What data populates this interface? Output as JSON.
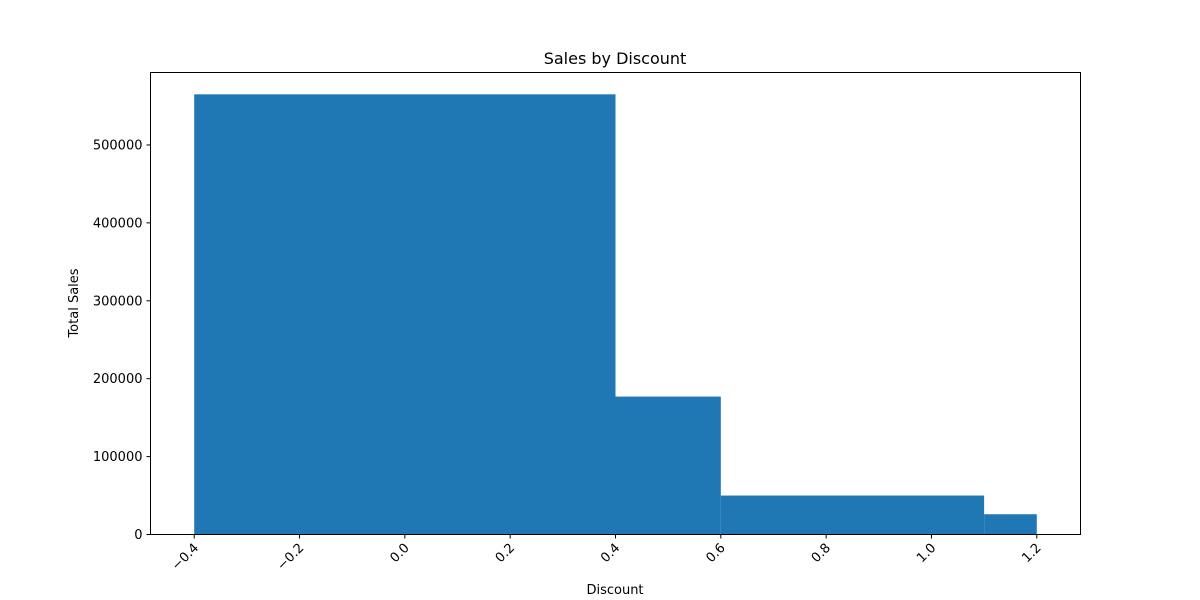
{
  "chart_data": {
    "type": "bar",
    "title": "Sales by Discount",
    "xlabel": "Discount",
    "ylabel": "Total Sales",
    "xlim": [
      -0.483,
      1.283
    ],
    "ylim": [
      0,
      593000
    ],
    "bar_color": "#1f77b4",
    "bars": [
      {
        "x_start": -0.4,
        "x_end": 0.4,
        "value": 565000
      },
      {
        "x_start": 0.4,
        "x_end": 0.6,
        "value": 177000
      },
      {
        "x_start": 0.6,
        "x_end": 1.1,
        "value": 50000
      },
      {
        "x_start": 1.1,
        "x_end": 1.2,
        "value": 26000
      }
    ],
    "x_ticks": [
      {
        "value": -0.4,
        "label": "−0.4"
      },
      {
        "value": -0.2,
        "label": "−0.2"
      },
      {
        "value": 0.0,
        "label": "0.0"
      },
      {
        "value": 0.2,
        "label": "0.2"
      },
      {
        "value": 0.4,
        "label": "0.4"
      },
      {
        "value": 0.6,
        "label": "0.6"
      },
      {
        "value": 0.8,
        "label": "0.8"
      },
      {
        "value": 1.0,
        "label": "1.0"
      },
      {
        "value": 1.2,
        "label": "1.2"
      }
    ],
    "y_ticks": [
      {
        "value": 0,
        "label": "0"
      },
      {
        "value": 100000,
        "label": "100000"
      },
      {
        "value": 200000,
        "label": "200000"
      },
      {
        "value": 300000,
        "label": "300000"
      },
      {
        "value": 400000,
        "label": "400000"
      },
      {
        "value": 500000,
        "label": "500000"
      }
    ],
    "x_tick_rotation_deg": 45,
    "grid": false,
    "legend": "none"
  }
}
